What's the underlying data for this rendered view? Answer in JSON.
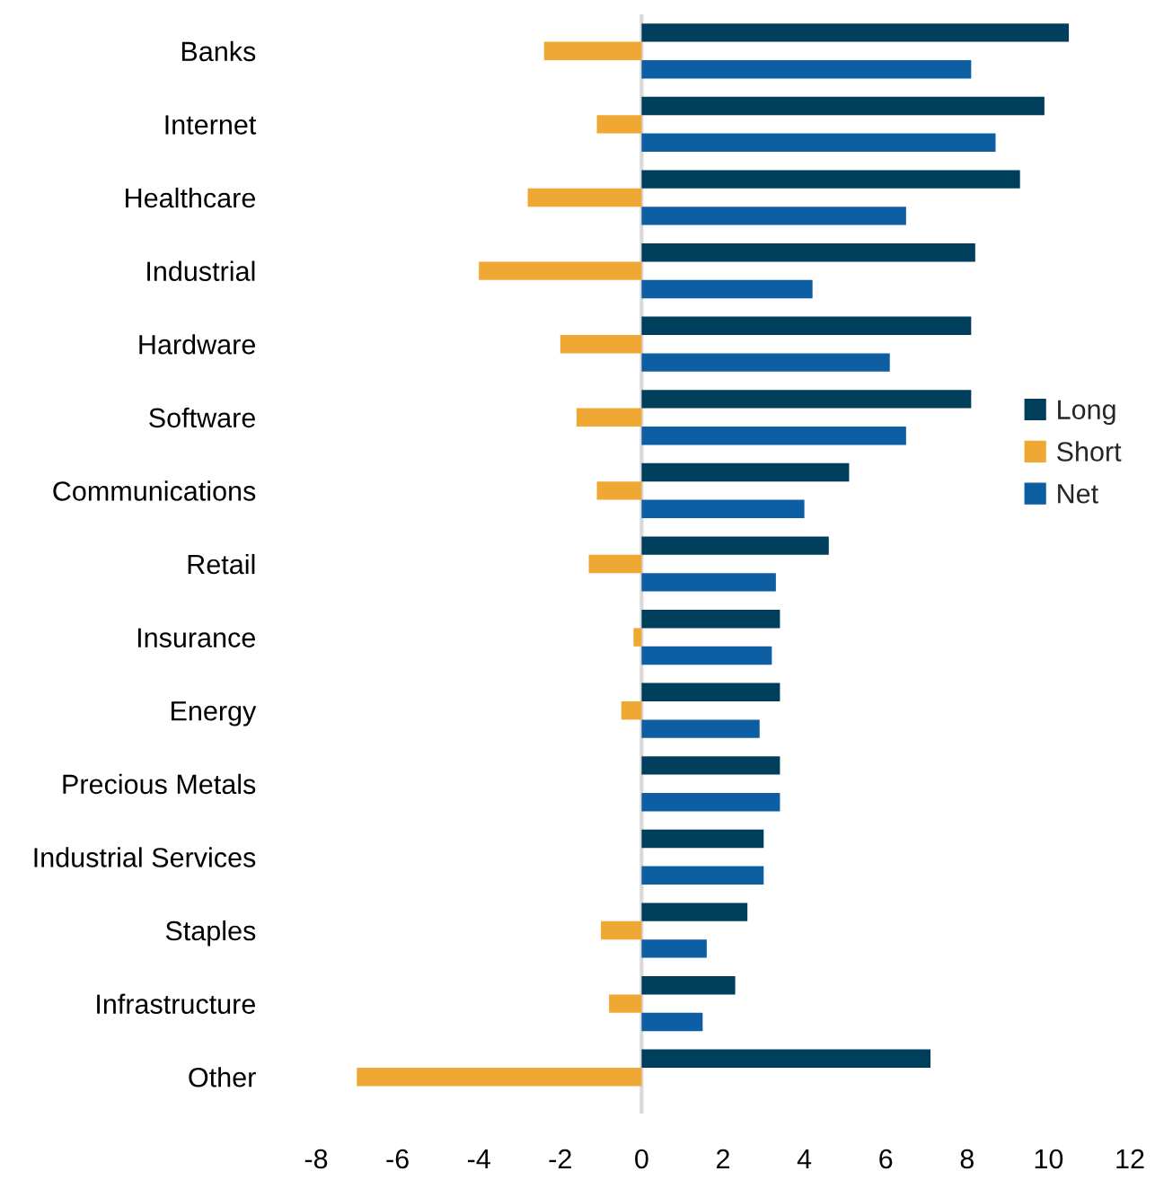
{
  "chart_data": {
    "type": "bar",
    "orientation": "horizontal",
    "categories": [
      "Banks",
      "Internet",
      "Healthcare",
      "Industrial",
      "Hardware",
      "Software",
      "Communications",
      "Retail",
      "Insurance",
      "Energy",
      "Precious Metals",
      "Industrial Services",
      "Staples",
      "Infrastructure",
      "Other"
    ],
    "series": [
      {
        "name": "Long",
        "color": "#003f5c",
        "values": [
          10.5,
          9.9,
          9.3,
          8.2,
          8.1,
          8.1,
          5.1,
          4.6,
          3.4,
          3.4,
          3.4,
          3.0,
          2.6,
          2.3,
          7.1
        ]
      },
      {
        "name": "Short",
        "color": "#eea833",
        "values": [
          -2.4,
          -1.1,
          -2.8,
          -4.0,
          -2.0,
          -1.6,
          -1.1,
          -1.3,
          -0.2,
          -0.5,
          null,
          null,
          -1.0,
          -0.8,
          -7.0
        ]
      },
      {
        "name": "Net",
        "color": "#0e5ea3",
        "values": [
          8.1,
          8.7,
          6.5,
          4.2,
          6.1,
          6.5,
          4.0,
          3.3,
          3.2,
          2.9,
          3.4,
          3.0,
          1.6,
          1.5,
          null
        ]
      }
    ],
    "xlim": [
      -8,
      12
    ],
    "xticks": [
      -8,
      -6,
      -4,
      -2,
      0,
      2,
      4,
      6,
      8,
      10,
      12
    ],
    "ref_lines": [
      {
        "axis": "x",
        "value": 0,
        "color": "#d9d9d9"
      }
    ],
    "grid": false,
    "legend": "right"
  }
}
